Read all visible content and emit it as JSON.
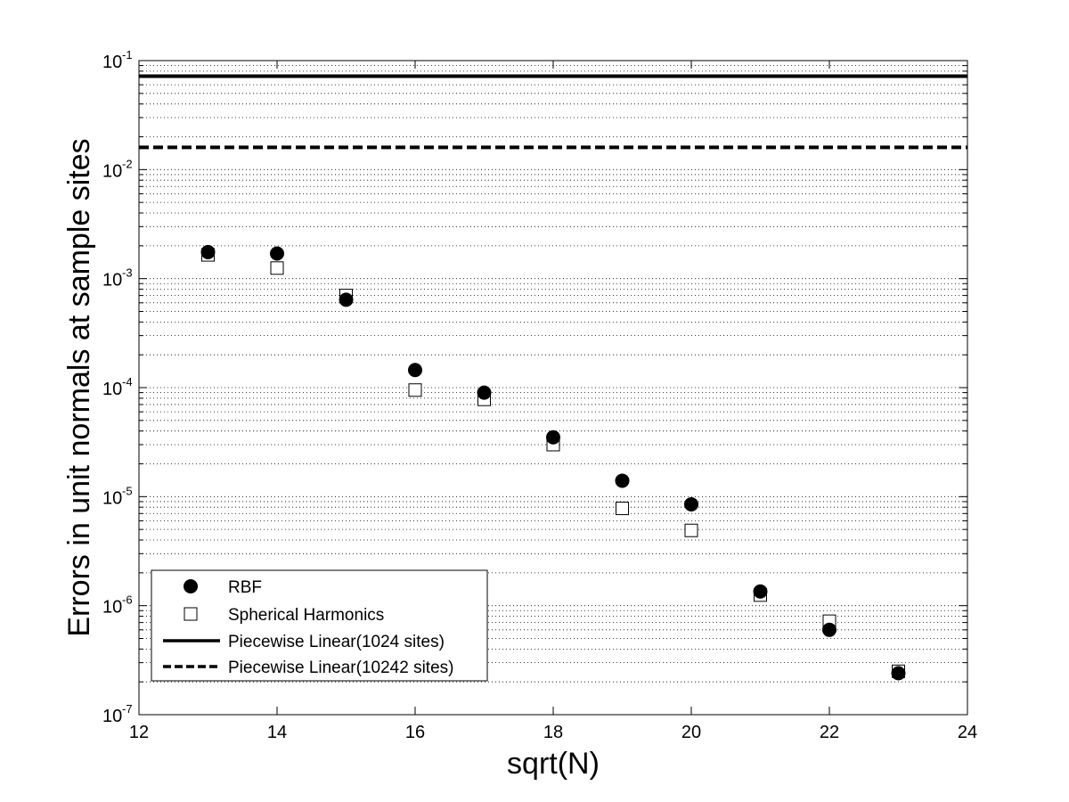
{
  "chart_data": {
    "type": "scatter",
    "xlabel": "sqrt(N)",
    "ylabel": "Errors in unit normals at sample sites",
    "xlim": [
      12,
      24
    ],
    "ylim": [
      1e-07,
      0.1
    ],
    "yscale": "log",
    "grid": "dotted, y-axis major and minor",
    "legend_position": "bottom-left",
    "x_ticks": [
      "12",
      "14",
      "16",
      "18",
      "20",
      "22",
      "24"
    ],
    "y_ticks": [
      {
        "base": "10",
        "exp": "-7"
      },
      {
        "base": "10",
        "exp": "-6"
      },
      {
        "base": "10",
        "exp": "-5"
      },
      {
        "base": "10",
        "exp": "-4"
      },
      {
        "base": "10",
        "exp": "-3"
      },
      {
        "base": "10",
        "exp": "-2"
      },
      {
        "base": "10",
        "exp": "-1"
      }
    ],
    "series": [
      {
        "name": "RBF",
        "marker": "filled-circle",
        "color": "#000000",
        "x": [
          13,
          14,
          15,
          16,
          17,
          18,
          19,
          20,
          21,
          22,
          23
        ],
        "y": [
          0.00175,
          0.0017,
          0.00064,
          0.000145,
          9e-05,
          3.5e-05,
          1.4e-05,
          8.5e-06,
          1.35e-06,
          6e-07,
          2.4e-07
        ]
      },
      {
        "name": "Spherical Harmonics",
        "marker": "open-square",
        "color": "#000000",
        "x": [
          13,
          14,
          15,
          16,
          17,
          18,
          19,
          20,
          21,
          22,
          23
        ],
        "y": [
          0.00165,
          0.00125,
          0.0007,
          9.5e-05,
          7.8e-05,
          3e-05,
          7.8e-06,
          4.9e-06,
          1.25e-06,
          7.2e-07,
          2.5e-07
        ]
      },
      {
        "name": "Piecewise Linear(1024 sites)",
        "marker": "solid-line",
        "color": "#000000",
        "y": 0.072
      },
      {
        "name": "Piecewise Linear(10242 sites)",
        "marker": "dashed-line",
        "color": "#000000",
        "y": 0.016
      }
    ]
  }
}
